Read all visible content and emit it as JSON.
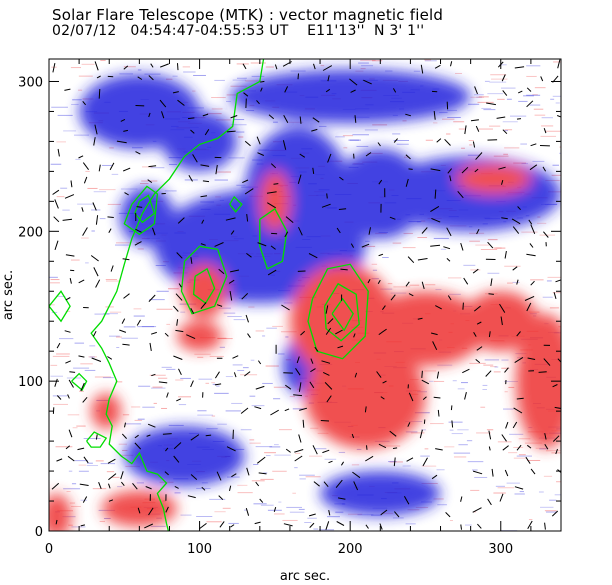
{
  "chart_data": {
    "type": "heatmap",
    "title": "Solar Flare Telescope (MTK) : vector magnetic field",
    "subtitle": "02/07/12   04:54:47-04:55:53 UT    E11'13''  N 3' 1''",
    "xlabel": "arc sec.",
    "ylabel": "arc sec.",
    "xlim": [
      0,
      340
    ],
    "ylim": [
      0,
      315
    ],
    "x_ticks": [
      0,
      100,
      200,
      300
    ],
    "y_ticks": [
      0,
      100,
      200,
      300
    ],
    "colors": {
      "positive": "#ee3333",
      "negative": "#2222dd",
      "contour": "#00dd00",
      "vector": "#000000",
      "background": "#ffffff"
    },
    "regions": [
      {
        "polarity": "negative",
        "cx": 65,
        "cy": 210,
        "rx": 18,
        "ry": 20
      },
      {
        "polarity": "negative",
        "cx": 140,
        "cy": 190,
        "rx": 70,
        "ry": 38
      },
      {
        "polarity": "negative",
        "cx": 165,
        "cy": 225,
        "rx": 35,
        "ry": 45
      },
      {
        "polarity": "negative",
        "cx": 220,
        "cy": 225,
        "rx": 30,
        "ry": 30
      },
      {
        "polarity": "negative",
        "cx": 280,
        "cy": 225,
        "rx": 60,
        "ry": 25
      },
      {
        "polarity": "negative",
        "cx": 100,
        "cy": 260,
        "rx": 25,
        "ry": 20
      },
      {
        "polarity": "negative",
        "cx": 60,
        "cy": 280,
        "rx": 40,
        "ry": 25
      },
      {
        "polarity": "negative",
        "cx": 200,
        "cy": 290,
        "rx": 80,
        "ry": 18
      },
      {
        "polarity": "negative",
        "cx": 170,
        "cy": 110,
        "rx": 15,
        "ry": 20
      },
      {
        "polarity": "negative",
        "cx": 90,
        "cy": 50,
        "rx": 40,
        "ry": 20
      },
      {
        "polarity": "negative",
        "cx": 220,
        "cy": 25,
        "rx": 40,
        "ry": 15
      },
      {
        "polarity": "positive",
        "cx": 195,
        "cy": 140,
        "rx": 35,
        "ry": 38
      },
      {
        "polarity": "positive",
        "cx": 210,
        "cy": 90,
        "rx": 40,
        "ry": 35
      },
      {
        "polarity": "positive",
        "cx": 250,
        "cy": 135,
        "rx": 40,
        "ry": 25
      },
      {
        "polarity": "positive",
        "cx": 300,
        "cy": 140,
        "rx": 25,
        "ry": 20
      },
      {
        "polarity": "positive",
        "cx": 330,
        "cy": 100,
        "rx": 20,
        "ry": 45
      },
      {
        "polarity": "positive",
        "cx": 103,
        "cy": 160,
        "rx": 15,
        "ry": 18
      },
      {
        "polarity": "positive",
        "cx": 150,
        "cy": 220,
        "rx": 10,
        "ry": 20
      },
      {
        "polarity": "positive",
        "cx": 295,
        "cy": 235,
        "rx": 25,
        "ry": 10
      },
      {
        "polarity": "positive",
        "cx": 38,
        "cy": 80,
        "rx": 10,
        "ry": 12
      },
      {
        "polarity": "positive",
        "cx": 60,
        "cy": 15,
        "rx": 25,
        "ry": 12
      },
      {
        "polarity": "positive",
        "cx": 5,
        "cy": 10,
        "rx": 10,
        "ry": 15
      },
      {
        "polarity": "positive",
        "cx": 100,
        "cy": 130,
        "rx": 15,
        "ry": 10
      }
    ],
    "contours": [
      [
        [
          143,
          318
        ],
        [
          140,
          300
        ],
        [
          125,
          292
        ],
        [
          122,
          270
        ],
        [
          112,
          262
        ],
        [
          100,
          258
        ],
        [
          90,
          250
        ],
        [
          80,
          235
        ],
        [
          70,
          225
        ],
        [
          62,
          212
        ],
        [
          55,
          195
        ],
        [
          50,
          178
        ],
        [
          45,
          160
        ],
        [
          40,
          150
        ],
        [
          35,
          140
        ],
        [
          28,
          132
        ],
        [
          35,
          122
        ],
        [
          40,
          112
        ],
        [
          45,
          100
        ],
        [
          40,
          88
        ],
        [
          38,
          78
        ],
        [
          42,
          70
        ],
        [
          40,
          58
        ],
        [
          48,
          50
        ],
        [
          55,
          45
        ],
        [
          60,
          52
        ],
        [
          65,
          40
        ],
        [
          72,
          38
        ],
        [
          78,
          32
        ],
        [
          72,
          25
        ],
        [
          76,
          15
        ],
        [
          78,
          5
        ],
        [
          80,
          -3
        ]
      ],
      [
        [
          55,
          218
        ],
        [
          65,
          230
        ],
        [
          72,
          225
        ],
        [
          70,
          205
        ],
        [
          60,
          198
        ],
        [
          50,
          205
        ],
        [
          55,
          218
        ]
      ],
      [
        [
          60,
          220
        ],
        [
          66,
          224
        ],
        [
          70,
          212
        ],
        [
          62,
          206
        ],
        [
          57,
          212
        ],
        [
          60,
          220
        ]
      ],
      [
        [
          90,
          180
        ],
        [
          100,
          190
        ],
        [
          112,
          188
        ],
        [
          118,
          170
        ],
        [
          110,
          150
        ],
        [
          95,
          145
        ],
        [
          88,
          160
        ],
        [
          90,
          180
        ]
      ],
      [
        [
          97,
          170
        ],
        [
          105,
          175
        ],
        [
          110,
          162
        ],
        [
          104,
          152
        ],
        [
          96,
          158
        ],
        [
          97,
          170
        ]
      ],
      [
        [
          140,
          208
        ],
        [
          150,
          215
        ],
        [
          158,
          200
        ],
        [
          155,
          180
        ],
        [
          145,
          175
        ],
        [
          140,
          190
        ],
        [
          140,
          208
        ]
      ],
      [
        [
          175,
          155
        ],
        [
          185,
          175
        ],
        [
          200,
          178
        ],
        [
          212,
          160
        ],
        [
          210,
          130
        ],
        [
          195,
          115
        ],
        [
          178,
          120
        ],
        [
          172,
          140
        ],
        [
          175,
          155
        ]
      ],
      [
        [
          183,
          150
        ],
        [
          192,
          165
        ],
        [
          204,
          158
        ],
        [
          206,
          138
        ],
        [
          194,
          127
        ],
        [
          184,
          135
        ],
        [
          183,
          150
        ]
      ],
      [
        [
          188,
          145
        ],
        [
          195,
          155
        ],
        [
          202,
          145
        ],
        [
          196,
          134
        ],
        [
          188,
          145
        ]
      ],
      [
        [
          120,
          218
        ],
        [
          123,
          223
        ],
        [
          128,
          218
        ],
        [
          124,
          213
        ],
        [
          120,
          218
        ]
      ],
      [
        [
          25,
          60
        ],
        [
          30,
          66
        ],
        [
          38,
          62
        ],
        [
          34,
          56
        ],
        [
          28,
          56
        ],
        [
          25,
          60
        ]
      ],
      [
        [
          15,
          100
        ],
        [
          20,
          105
        ],
        [
          25,
          100
        ],
        [
          22,
          94
        ],
        [
          15,
          100
        ]
      ],
      [
        [
          0,
          150
        ],
        [
          8,
          160
        ],
        [
          14,
          150
        ],
        [
          8,
          140
        ],
        [
          0,
          150
        ]
      ]
    ]
  }
}
